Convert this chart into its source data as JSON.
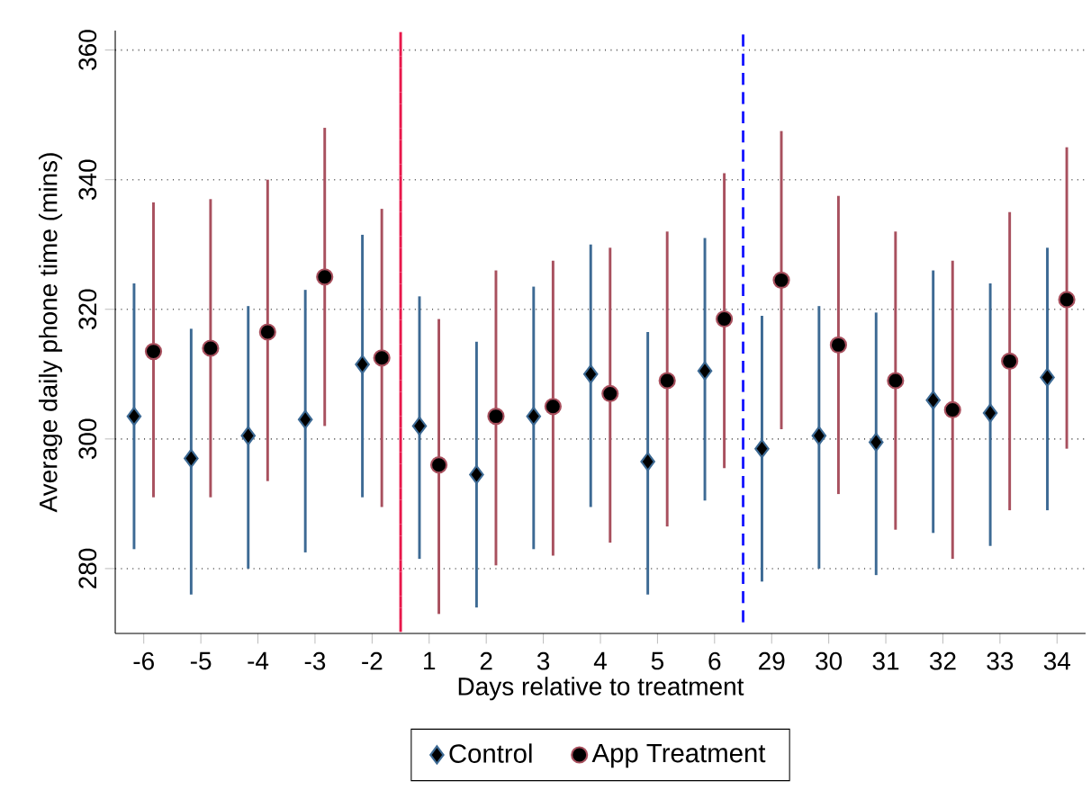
{
  "chart_data": {
    "type": "scatter",
    "xlabel": "Days relative to treatment",
    "ylabel": "Average daily phone time (mins)",
    "categories": [
      "-6",
      "-5",
      "-4",
      "-3",
      "-2",
      "1",
      "2",
      "3",
      "4",
      "5",
      "6",
      "29",
      "30",
      "31",
      "32",
      "33",
      "34"
    ],
    "series": [
      {
        "name": "Control",
        "color": "#3d6a94",
        "marker": "diamond",
        "values": [
          303.5,
          297,
          300.5,
          303,
          311.5,
          302,
          294.5,
          303.5,
          310,
          296.5,
          310.5,
          298.5,
          300.5,
          299.5,
          306,
          304,
          309.5
        ],
        "errors": [
          [
            283,
            324
          ],
          [
            276,
            317
          ],
          [
            280,
            320.5
          ],
          [
            282.5,
            323
          ],
          [
            291,
            331.5
          ],
          [
            281.5,
            322
          ],
          [
            274,
            315
          ],
          [
            283,
            323.5
          ],
          [
            289.5,
            330
          ],
          [
            276,
            316.5
          ],
          [
            290.5,
            331
          ],
          [
            278,
            319
          ],
          [
            280,
            320.5
          ],
          [
            279,
            319.5
          ],
          [
            285.5,
            326
          ],
          [
            283.5,
            324
          ],
          [
            289,
            329.5
          ]
        ]
      },
      {
        "name": "App Treatment",
        "color": "#a8505e",
        "marker": "circle",
        "values": [
          313.5,
          314,
          316.5,
          325,
          312.5,
          296,
          303.5,
          305,
          307,
          309,
          318.5,
          324.5,
          314.5,
          309,
          304.5,
          312,
          321.5
        ],
        "errors": [
          [
            291,
            336.5
          ],
          [
            291,
            337
          ],
          [
            293.5,
            340
          ],
          [
            302,
            348
          ],
          [
            289.5,
            335.5
          ],
          [
            273,
            318.5
          ],
          [
            280.5,
            326
          ],
          [
            282,
            327.5
          ],
          [
            284,
            329.5
          ],
          [
            286.5,
            332
          ],
          [
            295.5,
            341
          ],
          [
            301.5,
            347.5
          ],
          [
            291.5,
            337.5
          ],
          [
            286,
            332
          ],
          [
            281.5,
            327.5
          ],
          [
            289,
            335
          ],
          [
            298.5,
            345
          ]
        ]
      }
    ],
    "ylim": [
      270,
      363
    ],
    "yticks": [
      280,
      300,
      320,
      340,
      360
    ],
    "grid": "y",
    "legend": "bottom"
  }
}
